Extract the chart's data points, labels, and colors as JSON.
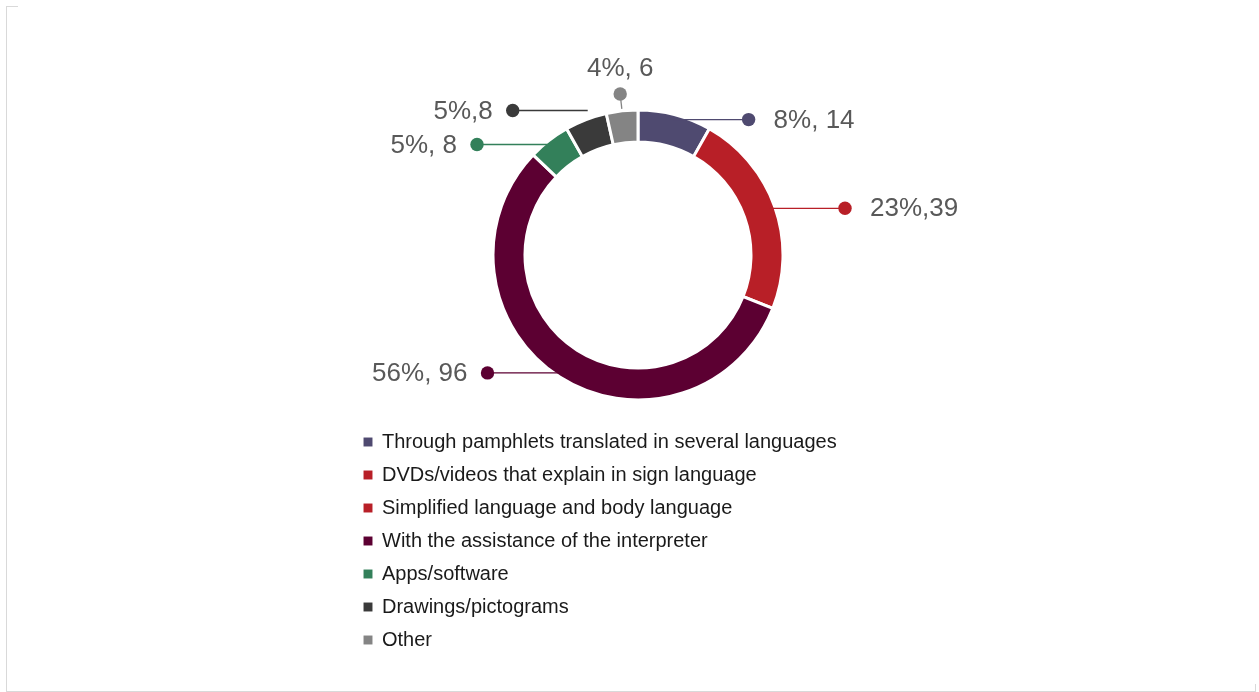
{
  "chart_data": {
    "type": "donut",
    "categories": [
      "Through pamphlets translated in several languages",
      "DVDs/videos that explain in sign language",
      "Simplified language and body language",
      "With the assistance of the interpreter",
      "Apps/software",
      "Drawings/pictograms",
      "Other"
    ],
    "values": [
      14,
      0,
      39,
      96,
      8,
      8,
      6
    ],
    "colors": [
      "#4f4a70",
      "#b81f27",
      "#b81f27",
      "#5c0032",
      "#33805a",
      "#3a3a3a",
      "#848484"
    ],
    "value_labels": [
      "8%, 14",
      null,
      "23%,39",
      "56%, 96",
      "5%, 8",
      "5%,8",
      "4%, 6"
    ],
    "legend": "bottom"
  }
}
